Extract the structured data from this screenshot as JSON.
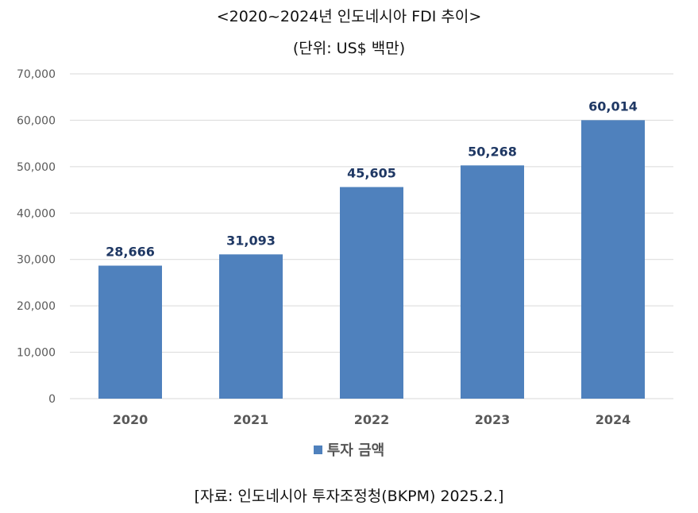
{
  "title": "<2020~2024년 인도네시아 FDI 추이>",
  "subtitle": "(단위: US$ 백만)",
  "source": "[자료: 인도네시아 투자조정청(BKPM) 2025.2.]",
  "chart_data": {
    "type": "bar",
    "categories": [
      "2020",
      "2021",
      "2022",
      "2023",
      "2024"
    ],
    "series": [
      {
        "name": "투자 금액",
        "values": [
          28666,
          31093,
          45605,
          50268,
          60014
        ]
      }
    ],
    "data_labels": [
      "28,666",
      "31,093",
      "45,605",
      "50,268",
      "60,014"
    ],
    "yticks": [
      "0",
      "10,000",
      "20,000",
      "30,000",
      "40,000",
      "50,000",
      "60,000",
      "70,000"
    ],
    "ylim": [
      0,
      70000
    ],
    "grid": true,
    "legend_position": "bottom",
    "colors": {
      "bar": "#4f81bd",
      "grid": "#d9d9d9",
      "data_label": "#1f3864",
      "tick": "#595959"
    }
  }
}
